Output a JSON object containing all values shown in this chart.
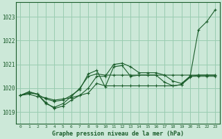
{
  "xlabel": "Graphe pression niveau de la mer (hPa)",
  "bg_color": "#cce8d8",
  "grid_color": "#99ccb0",
  "line_color": "#1a5c2a",
  "ylim": [
    1018.5,
    1023.6
  ],
  "xlim": [
    -0.5,
    23.5
  ],
  "yticks": [
    1019,
    1020,
    1021,
    1022,
    1023
  ],
  "xticks": [
    0,
    1,
    2,
    3,
    4,
    5,
    6,
    7,
    8,
    9,
    10,
    11,
    12,
    13,
    14,
    15,
    16,
    17,
    18,
    19,
    20,
    21,
    22,
    23
  ],
  "series": [
    [
      1019.7,
      1019.85,
      1019.75,
      1019.55,
      1019.45,
      1019.5,
      1019.7,
      1019.95,
      1020.6,
      1020.75,
      1020.05,
      1020.9,
      1020.95,
      1020.5,
      1020.55,
      1020.55,
      1020.55,
      1020.25,
      1020.1,
      1020.15,
      1020.45,
      1022.45,
      1022.8,
      1023.3
    ],
    [
      1019.7,
      1019.85,
      1019.75,
      1019.35,
      1019.2,
      1019.35,
      1019.65,
      1020.0,
      1020.5,
      1020.6,
      1020.55,
      1020.55,
      1020.55,
      1020.55,
      1020.55,
      1020.55,
      1020.55,
      1020.55,
      1020.55,
      1020.55,
      1020.55,
      1020.55,
      1020.55,
      1020.55
    ],
    [
      1019.7,
      1019.8,
      1019.75,
      1019.4,
      1019.15,
      1019.25,
      1019.5,
      1019.7,
      1020.0,
      1020.5,
      1020.5,
      1021.0,
      1021.05,
      1020.9,
      1020.65,
      1020.65,
      1020.65,
      1020.55,
      1020.3,
      1020.2,
      1020.5,
      1020.5,
      1020.5,
      1020.5
    ],
    [
      1019.7,
      1019.75,
      1019.65,
      1019.6,
      1019.5,
      1019.55,
      1019.6,
      1019.7,
      1019.8,
      1020.2,
      1020.1,
      1020.1,
      1020.1,
      1020.1,
      1020.1,
      1020.1,
      1020.1,
      1020.1,
      1020.1,
      1020.15,
      1020.5,
      1020.55,
      1020.55,
      1020.55
    ]
  ]
}
